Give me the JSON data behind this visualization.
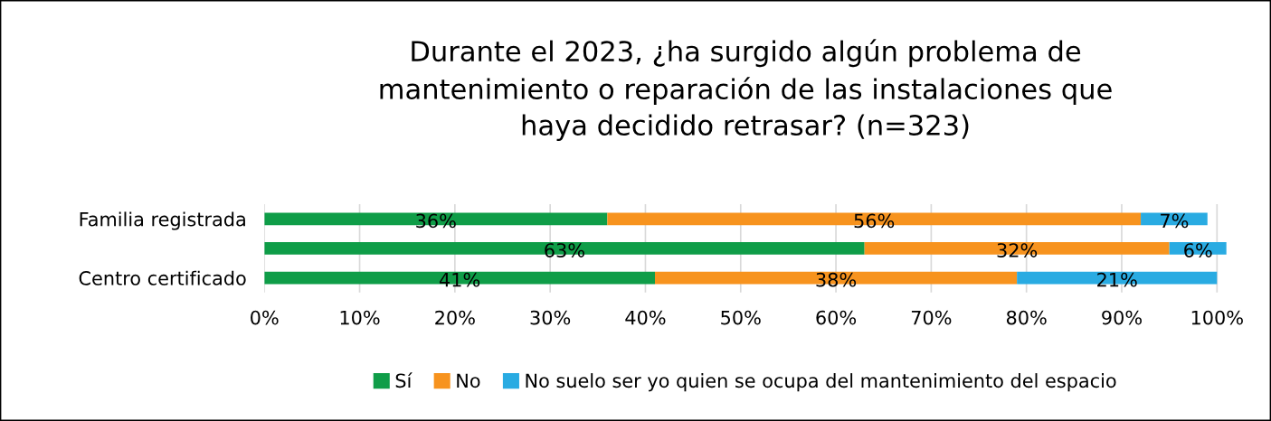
{
  "chart_data": {
    "type": "bar",
    "orientation": "horizontal",
    "stacked": true,
    "title": "Durante el 2023, ¿ha surgido algún problema de\nmantenimiento o reparación de las instalaciones que\nhaya decidido retrasar? (n=323)",
    "categories": [
      "Familia registrada",
      null,
      "Centro certificado"
    ],
    "series": [
      {
        "name": "Sí",
        "color": "#0f9d48",
        "values": [
          36,
          63,
          41
        ],
        "value_labels": [
          "36%",
          "63%",
          "41%"
        ]
      },
      {
        "name": "No",
        "color": "#f7931e",
        "values": [
          56,
          32,
          38
        ],
        "value_labels": [
          "56%",
          "32%",
          "38%"
        ]
      },
      {
        "name": "No suelo ser yo quien se ocupa del mantenimiento del espacio",
        "color": "#29abe2",
        "values": [
          7,
          6,
          21
        ],
        "value_labels": [
          "7%",
          "6%",
          "21%"
        ]
      }
    ],
    "xlim": [
      0,
      101
    ],
    "xticks": [
      {
        "value": 0,
        "label": "0%"
      },
      {
        "value": 10,
        "label": "10%"
      },
      {
        "value": 20,
        "label": "20%"
      },
      {
        "value": 30,
        "label": "30%"
      },
      {
        "value": 40,
        "label": "40%"
      },
      {
        "value": 50,
        "label": "50%"
      },
      {
        "value": 60,
        "label": "60%"
      },
      {
        "value": 70,
        "label": "70%"
      },
      {
        "value": 80,
        "label": "80%"
      },
      {
        "value": 90,
        "label": "90%"
      },
      {
        "value": 100,
        "label": "100%"
      }
    ],
    "grid": "x",
    "legend": "bottom"
  }
}
